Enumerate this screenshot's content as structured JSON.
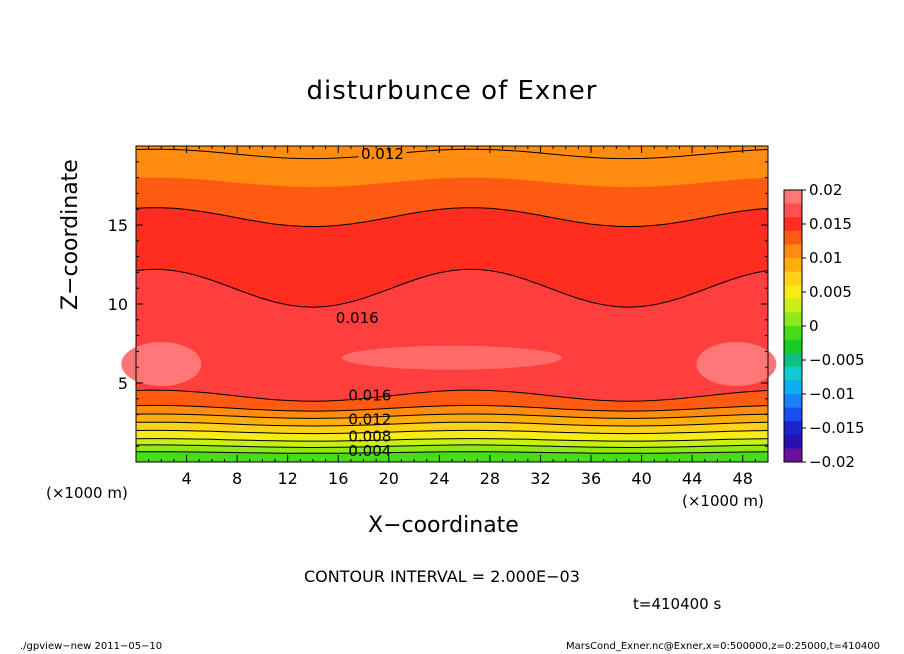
{
  "chart_data": {
    "type": "heatmap",
    "title": "disturbunce of Exner",
    "xlabel": "X−coordinate",
    "ylabel": "Z−coordinate",
    "x_unit": "(×1000 m)",
    "xlim": [
      0,
      50
    ],
    "ylim": [
      0,
      20
    ],
    "x_ticks": [
      "4",
      "8",
      "12",
      "16",
      "20",
      "24",
      "28",
      "32",
      "36",
      "40",
      "44",
      "48"
    ],
    "x_tick_values": [
      4,
      8,
      12,
      16,
      20,
      24,
      28,
      32,
      36,
      40,
      44,
      48
    ],
    "y_ticks": [
      "5",
      "10",
      "15"
    ],
    "y_tick_values": [
      5,
      10,
      15
    ],
    "colorbar": {
      "levels": [
        0.02,
        0.015,
        0.01,
        0.005,
        0,
        -0.005,
        -0.01,
        -0.015,
        -0.02
      ],
      "labels": [
        "0.02",
        "0.015",
        "0.01",
        "0.005",
        "0",
        "−0.005",
        "−0.01",
        "−0.015",
        "−0.02"
      ],
      "colors": [
        "#ff7676",
        "#ff4f4f",
        "#ff2d1f",
        "#ff5a12",
        "#ff8c10",
        "#ffae0c",
        "#ffd21a",
        "#f6ec16",
        "#c8f018",
        "#8fe81a",
        "#48dc18",
        "#18cc28",
        "#10c080",
        "#10cccc",
        "#0ab0f0",
        "#1a80ff",
        "#1a4cf0",
        "#1a24cc",
        "#2810b0",
        "#6a10a0"
      ]
    },
    "bands": [
      {
        "z_top": 0.6,
        "value": 0.002,
        "color": "#48dc18"
      },
      {
        "z_top": 1.0,
        "value": 0.004,
        "color": "#8fe81a"
      },
      {
        "z_top": 1.4,
        "value": 0.005,
        "color": "#c8f018"
      },
      {
        "z_top": 1.9,
        "value": 0.006,
        "color": "#f6ec16"
      },
      {
        "z_top": 2.4,
        "value": 0.008,
        "color": "#ffd21a"
      },
      {
        "z_top": 2.9,
        "value": 0.01,
        "color": "#ffae0c"
      },
      {
        "z_top": 3.4,
        "value": 0.012,
        "color": "#ff8c10"
      },
      {
        "z_top": 4.2,
        "value": 0.014,
        "color": "#ff5a12"
      },
      {
        "z_top": 11.0,
        "value": 0.016,
        "color": "#ff3e3e"
      },
      {
        "z_top": 15.5,
        "value": 0.015,
        "color": "#ff2d1f"
      },
      {
        "z_top": 17.7,
        "value": 0.014,
        "color": "#ff5a12"
      },
      {
        "z_top": 20.0,
        "value": 0.012,
        "color": "#ff8c10"
      }
    ],
    "contour_labels": [
      "0.012",
      "0.016",
      "0.016",
      "0.012",
      "0.008",
      "0.004"
    ],
    "contour_interval": "CONTOUR INTERVAL = 2.000E−03",
    "time": "t=410400 s"
  },
  "footer": {
    "left": "./gpview−new   2011−05−10",
    "right": "MarsCond_Exner.nc@Exner,x=0:500000,z=0:25000,t=410400"
  }
}
